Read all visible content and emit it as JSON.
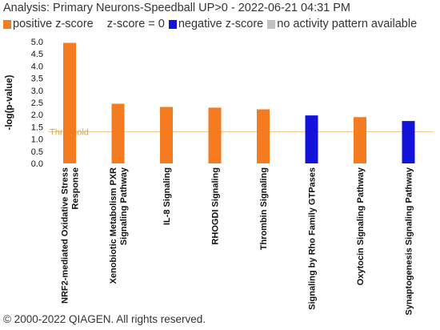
{
  "header": {
    "title": "Analysis: Primary Neurons-Speedball UP>0 - 2022-06-21 04:31 PM"
  },
  "legend": [
    {
      "label": "positive z-score",
      "color": "#f47b20",
      "icon": "orange-square"
    },
    {
      "label": "z-score = 0",
      "color": "#ffffff",
      "icon": "white-square"
    },
    {
      "label": "negative z-score",
      "color": "#1212d8",
      "icon": "blue-square"
    },
    {
      "label": "no activity pattern available",
      "color": "#c0c0c0",
      "icon": "gray-square"
    }
  ],
  "footer": "© 2000-2022 QIAGEN. All rights reserved.",
  "chart_data": {
    "type": "bar",
    "ylabel": "-log(p-value)",
    "xlabel": "",
    "ylim": [
      0,
      5.0
    ],
    "yticks": [
      "0.0",
      "0.5",
      "1.0",
      "1.5",
      "2.0",
      "2.5",
      "3.0",
      "3.5",
      "4.0",
      "4.5",
      "5.0"
    ],
    "threshold": {
      "label": "Threshold",
      "value": 1.3
    },
    "categories": [
      [
        "NRF2-mediated Oxidative Stress",
        "Response"
      ],
      [
        "Xenobiotic Metabolism PXR",
        "Signaling Pathway"
      ],
      [
        "IL-8 Signaling"
      ],
      [
        "RHOGDI Signaling"
      ],
      [
        "Thrombin Signaling"
      ],
      [
        "Signaling by Rho Family GTPases"
      ],
      [
        "Oxytocin Signaling Pathway"
      ],
      [
        "Synaptogenesis Signaling Pathway"
      ]
    ],
    "values": [
      4.95,
      2.45,
      2.32,
      2.29,
      2.22,
      1.97,
      1.9,
      1.74
    ],
    "bar_colors": [
      "#f47b20",
      "#f47b20",
      "#f47b20",
      "#f47b20",
      "#f47b20",
      "#1212d8",
      "#f47b20",
      "#1212d8"
    ],
    "grid": false
  }
}
